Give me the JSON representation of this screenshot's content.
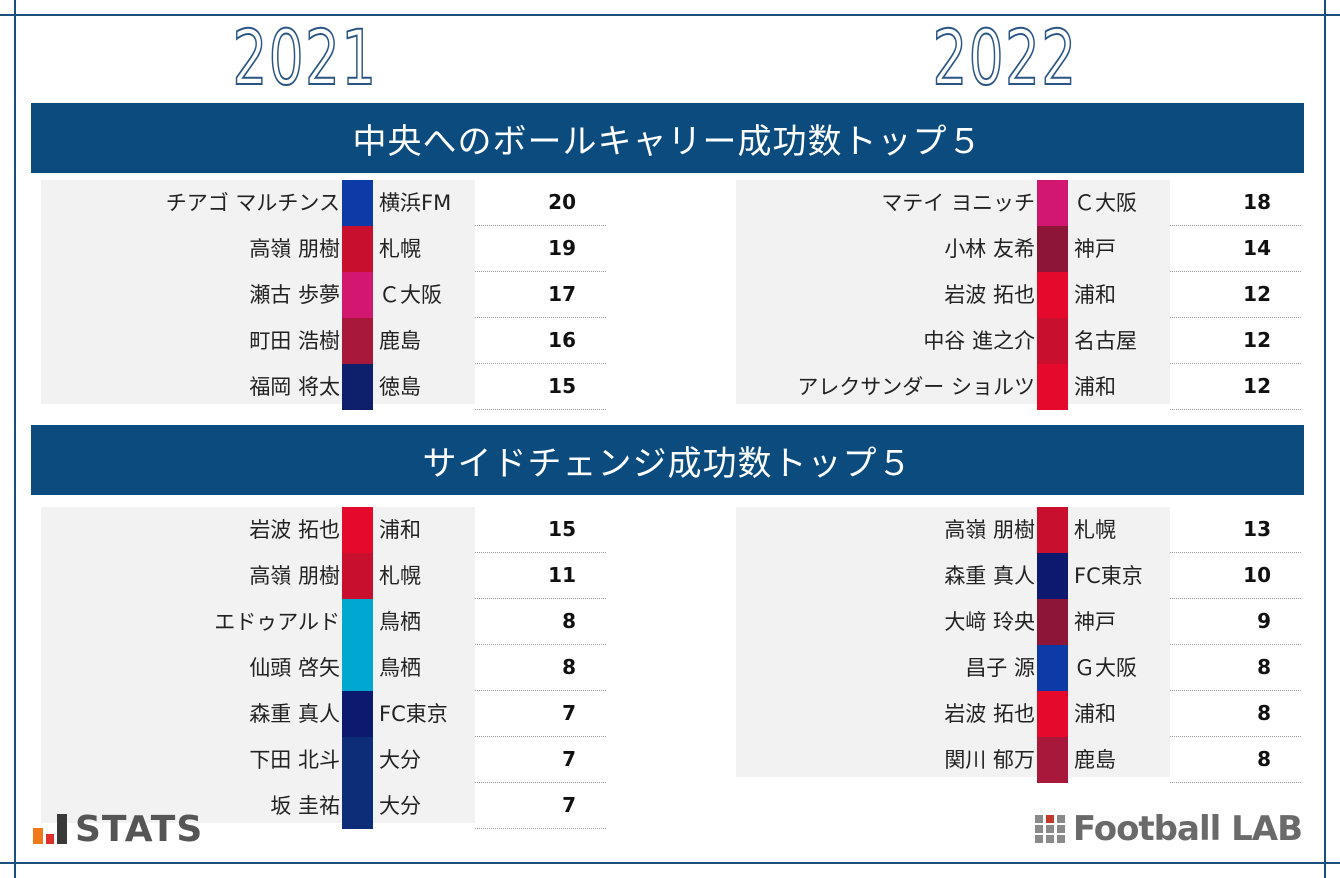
{
  "years": {
    "left": "2021",
    "right": "2022"
  },
  "sections": [
    {
      "title": "中央へのボールキャリー成功数トップ５",
      "left": [
        {
          "name": "チアゴ マルチンス",
          "team": "横浜FM",
          "value": "20",
          "color": "#0c3aa6"
        },
        {
          "name": "高嶺 朋樹",
          "team": "札幌",
          "value": "19",
          "color": "#c8102e"
        },
        {
          "name": "瀬古 歩夢",
          "team": "Ｃ大阪",
          "value": "17",
          "color": "#d1176f"
        },
        {
          "name": "町田 浩樹",
          "team": "鹿島",
          "value": "16",
          "color": "#a8183a"
        },
        {
          "name": "福岡 将太",
          "team": "徳島",
          "value": "15",
          "color": "#0e1f6b"
        }
      ],
      "right": [
        {
          "name": "マテイ ヨニッチ",
          "team": "Ｃ大阪",
          "value": "18",
          "color": "#d1176f"
        },
        {
          "name": "小林 友希",
          "team": "神戸",
          "value": "14",
          "color": "#8c1538"
        },
        {
          "name": "岩波 拓也",
          "team": "浦和",
          "value": "12",
          "color": "#e5092c"
        },
        {
          "name": "中谷 進之介",
          "team": "名古屋",
          "value": "12",
          "color": "#c8102e"
        },
        {
          "name": "アレクサンダー ショルツ",
          "team": "浦和",
          "value": "12",
          "color": "#e5092c"
        }
      ]
    },
    {
      "title": "サイドチェンジ成功数トップ５",
      "left": [
        {
          "name": "岩波 拓也",
          "team": "浦和",
          "value": "15",
          "color": "#e5092c"
        },
        {
          "name": "高嶺 朋樹",
          "team": "札幌",
          "value": "11",
          "color": "#c8102e"
        },
        {
          "name": "エドゥアルド",
          "team": "鳥栖",
          "value": "8",
          "color": "#00a7d0"
        },
        {
          "name": "仙頭 啓矢",
          "team": "鳥栖",
          "value": "8",
          "color": "#00a7d0"
        },
        {
          "name": "森重 真人",
          "team": "FC東京",
          "value": "7",
          "color": "#0b1a6e"
        },
        {
          "name": "下田 北斗",
          "team": "大分",
          "value": "7",
          "color": "#0d2d78"
        },
        {
          "name": "坂 圭祐",
          "team": "大分",
          "value": "7",
          "color": "#0d2d78"
        }
      ],
      "right": [
        {
          "name": "高嶺 朋樹",
          "team": "札幌",
          "value": "13",
          "color": "#c8102e"
        },
        {
          "name": "森重 真人",
          "team": "FC東京",
          "value": "10",
          "color": "#0b1a6e"
        },
        {
          "name": "大﨑 玲央",
          "team": "神戸",
          "value": "9",
          "color": "#8c1538"
        },
        {
          "name": "昌子 源",
          "team": "Ｇ大阪",
          "value": "8",
          "color": "#0c3aa6"
        },
        {
          "name": "岩波 拓也",
          "team": "浦和",
          "value": "8",
          "color": "#e5092c"
        },
        {
          "name": "関川 郁万",
          "team": "鹿島",
          "value": "8",
          "color": "#a8183a"
        }
      ]
    }
  ],
  "logos": {
    "stats": "STATS",
    "lab": "Football LAB"
  }
}
